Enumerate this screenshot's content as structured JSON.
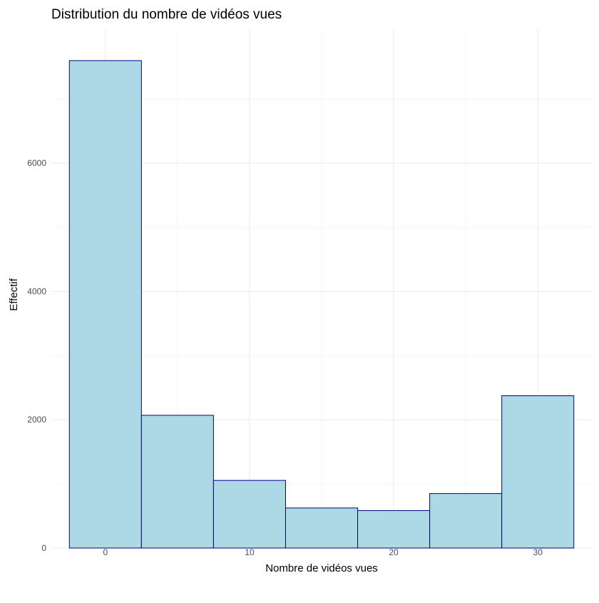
{
  "chart_data": {
    "type": "bar",
    "subtype": "histogram",
    "title": "Distribution du nombre de vidéos vues",
    "xlabel": "Nombre de vidéos vues",
    "ylabel": "Effectif",
    "bins": [
      {
        "center": 0,
        "count": 7600
      },
      {
        "center": 5,
        "count": 2070
      },
      {
        "center": 10,
        "count": 1055
      },
      {
        "center": 15,
        "count": 625
      },
      {
        "center": 20,
        "count": 585
      },
      {
        "center": 25,
        "count": 850
      },
      {
        "center": 30,
        "count": 2375
      }
    ],
    "bin_width": 5,
    "x_ticks": [
      0,
      10,
      20,
      30
    ],
    "y_ticks": [
      0,
      2000,
      4000,
      6000
    ],
    "xlim": [
      -3.75,
      33.75
    ],
    "ylim": [
      0,
      8100
    ],
    "grid": true,
    "colors": {
      "bar_fill": "#add8e6",
      "bar_stroke": "#00008b",
      "grid_major": "#ebebeb",
      "grid_minor": "#f4f4f4"
    }
  }
}
